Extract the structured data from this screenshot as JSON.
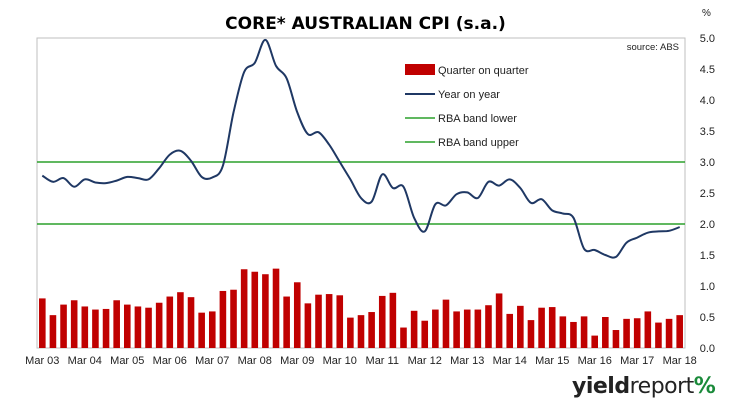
{
  "title": "CORE* AUSTRALIAN CPI (s.a.)",
  "unit": "%",
  "brand": {
    "word_a": "yield",
    "word_b": "report",
    "symbol": "%"
  },
  "colors": {
    "bars": "#c00000",
    "line": "#1f3864",
    "band": "#2ca02c",
    "frame": "#bfbfbf"
  },
  "chart_data": {
    "type": "bar+line",
    "title": "CORE* AUSTRALIAN CPI (s.a.)",
    "source": "source: ABS",
    "ylim": [
      0,
      5
    ],
    "yticks": [
      "0.0",
      "0.5",
      "1.0",
      "1.5",
      "2.0",
      "2.5",
      "3.0",
      "3.5",
      "4.0",
      "4.5",
      "5.0"
    ],
    "ylabel": "%",
    "xtick_labels": [
      "Mar 03",
      "Mar 04",
      "Mar 05",
      "Mar 06",
      "Mar 07",
      "Mar 08",
      "Mar 09",
      "Mar 10",
      "Mar 11",
      "Mar 12",
      "Mar 13",
      "Mar 14",
      "Mar 15",
      "Mar 16",
      "Mar 17",
      "Mar 18"
    ],
    "legend": [
      "Quarter on quarter",
      "Year on year",
      "RBA band lower",
      "RBA band upper"
    ],
    "legend_position": "top-right",
    "grid": false,
    "quarters_total": 61,
    "series": [
      {
        "name": "Quarter on quarter",
        "type": "bar",
        "values": [
          0.8,
          0.53,
          0.7,
          0.77,
          0.67,
          0.62,
          0.63,
          0.77,
          0.7,
          0.67,
          0.65,
          0.73,
          0.83,
          0.9,
          0.82,
          0.57,
          0.59,
          0.92,
          0.94,
          1.27,
          1.23,
          1.19,
          1.28,
          0.83,
          1.06,
          0.72,
          0.86,
          0.87,
          0.85,
          0.49,
          0.53,
          0.58,
          0.84,
          0.89,
          0.33,
          0.6,
          0.44,
          0.62,
          0.78,
          0.59,
          0.62,
          0.62,
          0.69,
          0.88,
          0.55,
          0.68,
          0.45,
          0.65,
          0.66,
          0.51,
          0.42,
          0.51,
          0.2,
          0.5,
          0.29,
          0.47,
          0.48,
          0.59,
          0.41,
          0.47,
          0.53
        ]
      },
      {
        "name": "Year on year",
        "type": "line",
        "values": [
          2.78,
          2.68,
          2.74,
          2.6,
          2.72,
          2.67,
          2.66,
          2.7,
          2.76,
          2.74,
          2.72,
          2.9,
          3.12,
          3.18,
          3.02,
          2.76,
          2.75,
          2.94,
          3.8,
          4.45,
          4.6,
          4.97,
          4.55,
          4.35,
          3.8,
          3.45,
          3.48,
          3.28,
          3.0,
          2.72,
          2.42,
          2.36,
          2.8,
          2.58,
          2.6,
          2.1,
          1.88,
          2.32,
          2.3,
          2.48,
          2.51,
          2.42,
          2.68,
          2.62,
          2.72,
          2.58,
          2.34,
          2.4,
          2.22,
          2.17,
          2.1,
          1.6,
          1.58,
          1.5,
          1.47,
          1.7,
          1.78,
          1.86,
          1.88,
          1.89,
          1.95
        ]
      },
      {
        "name": "RBA band lower",
        "type": "line",
        "values": [
          2.0,
          2.0
        ]
      },
      {
        "name": "RBA band upper",
        "type": "line",
        "values": [
          3.0,
          3.0
        ]
      }
    ]
  }
}
